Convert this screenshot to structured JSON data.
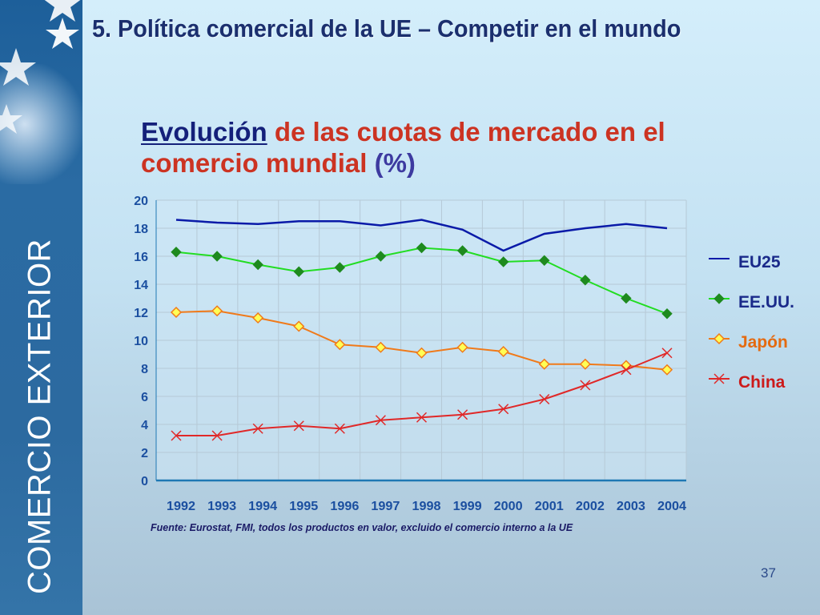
{
  "slide": {
    "title": "5. Política comercial de la UE – Competir en el mundo",
    "side_label": "COMERCIO EXTERIOR",
    "page_number": "37",
    "source_note": "Fuente: Eurostat, FMI, todos los productos en valor, excluido el comercio interno a la UE"
  },
  "chart_title": {
    "part1": "Evolución",
    "part2": " de las cuotas de mercado en el comercio mundial ",
    "part3": "(%)"
  },
  "chart_data": {
    "type": "line",
    "x": [
      "1992",
      "1993",
      "1994",
      "1995",
      "1996",
      "1997",
      "1998",
      "1999",
      "2000",
      "2001",
      "2002",
      "2003",
      "2004"
    ],
    "ylim": [
      0,
      20
    ],
    "yticks": [
      "0",
      "2",
      "4",
      "6",
      "8",
      "10",
      "12",
      "14",
      "16",
      "18",
      "20"
    ],
    "grid": true,
    "legend_position": "right",
    "series": [
      {
        "name": "EU25",
        "color": "#0a1aa8",
        "marker": "none",
        "legend_color": "#1a2a8a",
        "values": [
          18.6,
          18.4,
          18.3,
          18.5,
          18.5,
          18.2,
          18.6,
          17.9,
          16.4,
          17.6,
          18.0,
          18.3,
          18.0
        ]
      },
      {
        "name": "EE.UU.",
        "color": "#22dd22",
        "marker": "diamond",
        "marker_color": "#1e8a1e",
        "legend_color": "#1a2a8a",
        "values": [
          16.3,
          16.0,
          15.4,
          14.9,
          15.2,
          16.0,
          16.6,
          16.4,
          15.6,
          15.7,
          14.3,
          13.0,
          11.9
        ]
      },
      {
        "name": "Japón",
        "color": "#f07a1a",
        "marker": "diamond-open",
        "marker_color": "#ffff55",
        "legend_color": "#e46a10",
        "values": [
          12.0,
          12.1,
          11.6,
          11.0,
          9.7,
          9.5,
          9.1,
          9.5,
          9.2,
          8.3,
          8.3,
          8.2,
          7.9
        ]
      },
      {
        "name": "China",
        "color": "#e02828",
        "marker": "x",
        "marker_color": "#e02828",
        "legend_color": "#cc1a1a",
        "values": [
          3.2,
          3.2,
          3.7,
          3.9,
          3.7,
          4.3,
          4.5,
          4.7,
          5.1,
          5.8,
          6.8,
          7.9,
          9.1
        ]
      }
    ]
  }
}
